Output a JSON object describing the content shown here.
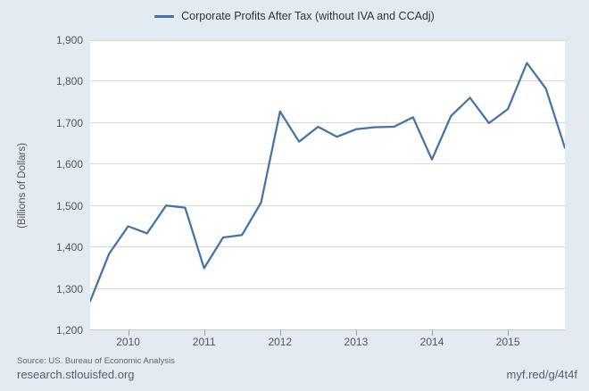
{
  "legend": {
    "label": "Corporate Profits After Tax (without IVA and CCAdj)"
  },
  "colors": {
    "background": "#e3ebf2",
    "plot_background": "#ffffff",
    "line": "#4572a7",
    "grid": "#d8d8d8",
    "axis": "#c6ccd2",
    "tick": "#99a0a7",
    "legend_text": "#333333",
    "axis_text": "#555555",
    "footer_text": "#666666"
  },
  "y_axis": {
    "title": "(Billions of Dollars)",
    "min": 1200,
    "max": 1900,
    "tick_step": 100,
    "tick_labels": [
      "1,900",
      "1,800",
      "1,700",
      "1,600",
      "1,500",
      "1,400",
      "1,300",
      "1,200"
    ]
  },
  "x_axis": {
    "tick_labels": [
      "2010",
      "2011",
      "2012",
      "2013",
      "2014",
      "2015"
    ],
    "tick_indices": [
      2,
      6,
      10,
      14,
      18,
      22
    ]
  },
  "footer": {
    "source": "Source: US. Bureau of Economic Analysis",
    "site": "research.stlouisfed.org",
    "short_url": "myf.red/g/4t4f"
  },
  "chart_data": {
    "type": "line",
    "title": "Corporate Profits After Tax (without IVA and CCAdj)",
    "xlabel": "",
    "ylabel": "(Billions of Dollars)",
    "ylim": [
      1200,
      1900
    ],
    "grid": true,
    "legend_position": "top-center",
    "line_color": "#4572a7",
    "frequency": "quarterly",
    "x": [
      "2009 Q3",
      "2009 Q4",
      "2010 Q1",
      "2010 Q2",
      "2010 Q3",
      "2010 Q4",
      "2011 Q1",
      "2011 Q2",
      "2011 Q3",
      "2011 Q4",
      "2012 Q1",
      "2012 Q2",
      "2012 Q3",
      "2012 Q4",
      "2013 Q1",
      "2013 Q2",
      "2013 Q3",
      "2013 Q4",
      "2014 Q1",
      "2014 Q2",
      "2014 Q3",
      "2014 Q4",
      "2015 Q1",
      "2015 Q2",
      "2015 Q3",
      "2015 Q4"
    ],
    "values": [
      1270,
      1385,
      1451,
      1434,
      1501,
      1496,
      1350,
      1424,
      1430,
      1508,
      1728,
      1655,
      1691,
      1667,
      1685,
      1690,
      1691,
      1714,
      1612,
      1717,
      1761,
      1700,
      1734,
      1845,
      1783,
      1640
    ]
  }
}
